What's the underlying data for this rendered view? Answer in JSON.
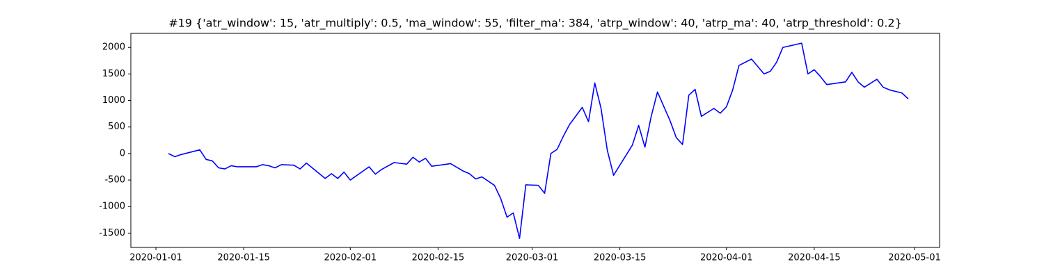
{
  "chart_data": {
    "type": "line",
    "title": "#19 {'atr_window': 15, 'atr_multiply': 0.5, 'ma_window': 55, 'filter_ma': 384, 'atrp_window': 40, 'atrp_ma': 40, 'atrp_threshold': 0.2}",
    "x": [
      "2020-01-03",
      "2020-01-04",
      "2020-01-05",
      "2020-01-08",
      "2020-01-09",
      "2020-01-10",
      "2020-01-11",
      "2020-01-12",
      "2020-01-13",
      "2020-01-14",
      "2020-01-17",
      "2020-01-18",
      "2020-01-19",
      "2020-01-20",
      "2020-01-21",
      "2020-01-23",
      "2020-01-24",
      "2020-01-25",
      "2020-01-28",
      "2020-01-29",
      "2020-01-30",
      "2020-01-31",
      "2020-02-01",
      "2020-02-04",
      "2020-02-05",
      "2020-02-06",
      "2020-02-08",
      "2020-02-10",
      "2020-02-11",
      "2020-02-12",
      "2020-02-13",
      "2020-02-14",
      "2020-02-17",
      "2020-02-19",
      "2020-02-20",
      "2020-02-21",
      "2020-02-22",
      "2020-02-24",
      "2020-02-25",
      "2020-02-26",
      "2020-02-27",
      "2020-02-28",
      "2020-02-29",
      "2020-03-02",
      "2020-03-03",
      "2020-03-04",
      "2020-03-05",
      "2020-03-06",
      "2020-03-07",
      "2020-03-09",
      "2020-03-10",
      "2020-03-11",
      "2020-03-12",
      "2020-03-13",
      "2020-03-14",
      "2020-03-17",
      "2020-03-18",
      "2020-03-19",
      "2020-03-20",
      "2020-03-21",
      "2020-03-23",
      "2020-03-24",
      "2020-03-25",
      "2020-03-26",
      "2020-03-27",
      "2020-03-28",
      "2020-03-30",
      "2020-03-31",
      "2020-04-01",
      "2020-04-02",
      "2020-04-03",
      "2020-04-05",
      "2020-04-07",
      "2020-04-08",
      "2020-04-09",
      "2020-04-10",
      "2020-04-13",
      "2020-04-14",
      "2020-04-15",
      "2020-04-16",
      "2020-04-17",
      "2020-04-20",
      "2020-04-21",
      "2020-04-22",
      "2020-04-23",
      "2020-04-25",
      "2020-04-26",
      "2020-04-27",
      "2020-04-29",
      "2020-04-30"
    ],
    "series": [
      {
        "color": "#0000ff",
        "values": [
          0,
          -60,
          -20,
          70,
          -110,
          -140,
          -270,
          -290,
          -230,
          -250,
          -250,
          -210,
          -230,
          -270,
          -210,
          -220,
          -290,
          -180,
          -470,
          -380,
          -470,
          -350,
          -500,
          -250,
          -390,
          -300,
          -170,
          -200,
          -70,
          -160,
          -90,
          -240,
          -190,
          -330,
          -380,
          -480,
          -440,
          -600,
          -850,
          -1200,
          -1120,
          -1600,
          -590,
          -600,
          -750,
          0,
          80,
          330,
          550,
          870,
          600,
          1330,
          850,
          60,
          -410,
          160,
          530,
          120,
          700,
          1160,
          620,
          300,
          170,
          1100,
          1210,
          700,
          850,
          760,
          880,
          1200,
          1660,
          1780,
          1500,
          1550,
          1720,
          2000,
          2080,
          1500,
          1580,
          1450,
          1300,
          1350,
          1530,
          1350,
          1250,
          1400,
          1250,
          1200,
          1140,
          1030
        ]
      }
    ],
    "xlim": [
      "2019-12-28",
      "2020-05-05"
    ],
    "xticks": [
      "2020-01-01",
      "2020-01-15",
      "2020-02-01",
      "2020-02-15",
      "2020-03-01",
      "2020-03-15",
      "2020-04-01",
      "2020-04-15",
      "2020-05-01"
    ],
    "ylim": [
      -1770,
      2265
    ],
    "yticks": [
      -1500,
      -1000,
      -500,
      0,
      500,
      1000,
      1500,
      2000
    ]
  }
}
